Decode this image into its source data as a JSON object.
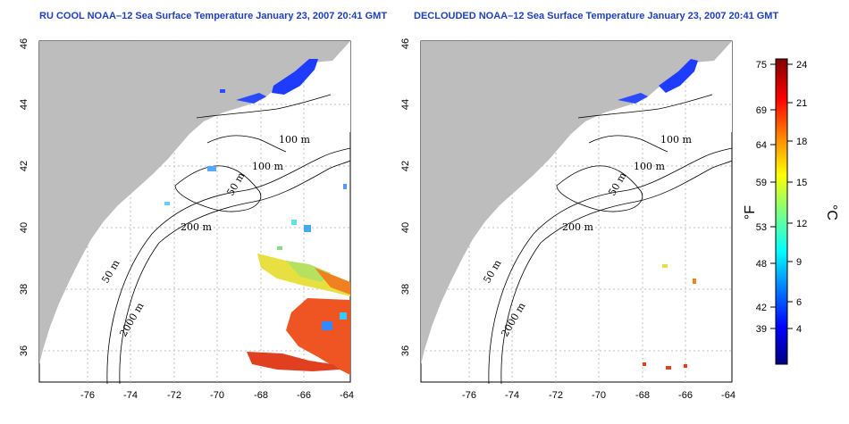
{
  "panels": [
    {
      "id": "left",
      "title": "RU COOL NOAA–12 Sea Surface Temperature January 23, 2007 20:41 GMT"
    },
    {
      "id": "right",
      "title": "DECLOUDED NOAA–12 Sea Surface Temperature January 23, 2007 20:41 GMT"
    }
  ],
  "axes": {
    "x_ticks": [
      "-76",
      "-74",
      "-72",
      "-70",
      "-68",
      "-66",
      "-64"
    ],
    "y_ticks": [
      "46",
      "44",
      "42",
      "40",
      "38",
      "36"
    ]
  },
  "contour_labels": {
    "m100a": "100 m",
    "m100b": "100 m",
    "m50a": "50 m",
    "m200": "200 m",
    "m50b": "50 m",
    "m2000": "2000 m"
  },
  "colorbar": {
    "unit_f": "°F",
    "unit_c": "°C",
    "fahrenheit_ticks": [
      "75",
      "69",
      "64",
      "59",
      "53",
      "48",
      "42",
      "39"
    ],
    "celsius_ticks": [
      "24",
      "21",
      "18",
      "15",
      "12",
      "9",
      "6",
      "4"
    ],
    "colors": [
      "#00007f",
      "#0000ff",
      "#007fff",
      "#00ffff",
      "#7fff7f",
      "#ffff00",
      "#ff7f00",
      "#ff0000",
      "#7f0000"
    ]
  },
  "colors": {
    "land": "#bdbdbd",
    "title": "#1f3fbf",
    "grid": "#bfbfbf"
  }
}
